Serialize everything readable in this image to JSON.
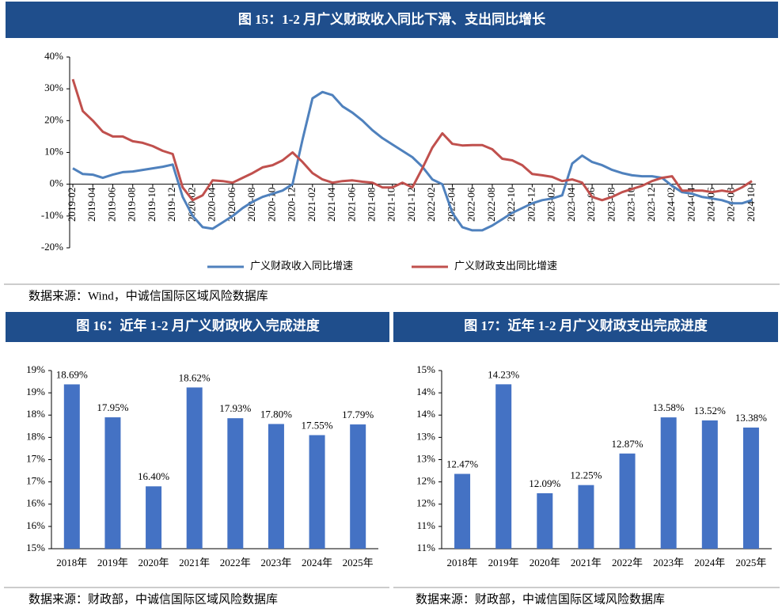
{
  "chart_data": [
    {
      "type": "line",
      "title": "图 15：1-2 月广义财政收入同比下滑、支出同比增长",
      "categories": [
        "2019-02",
        null,
        "2019-04",
        null,
        "2019-06",
        null,
        "2019-08",
        null,
        "2019-10",
        null,
        "2019-12",
        null,
        "2020-02",
        null,
        "2020-04",
        null,
        "2020-06",
        null,
        "2020-08",
        null,
        "2020-10",
        null,
        "2020-12",
        null,
        "2021-02",
        null,
        "2021-04",
        null,
        "2021-06",
        null,
        "2021-08",
        null,
        "2021-10",
        null,
        "2021-12",
        null,
        "2022-02",
        null,
        "2022-04",
        null,
        "2022-06",
        null,
        "2022-08",
        null,
        "2022-10",
        null,
        "2022-12",
        null,
        "2023-02",
        null,
        "2023-04",
        null,
        "2023-06",
        null,
        "2023-08",
        null,
        "2023-10",
        null,
        "2023-12",
        null,
        "2024-02",
        null,
        "2024-04",
        null,
        "2024-06",
        null,
        "2024-08",
        null,
        "2024-10"
      ],
      "series": [
        {
          "name": "广义财政收入同比增速",
          "color": "#4f81bd",
          "values": [
            5,
            3.2,
            3,
            2,
            3,
            3.8,
            4,
            4.5,
            5,
            5.5,
            6.2,
            -4,
            -10,
            -13.5,
            -14,
            -12,
            -10,
            -7.5,
            -5.5,
            -4,
            -3,
            -2,
            0,
            14,
            27,
            29,
            28,
            24.5,
            22.5,
            20,
            17,
            14.5,
            12.5,
            10.5,
            8.5,
            5.5,
            1.5,
            0,
            -9,
            -13.5,
            -14.5,
            -14.5,
            -13,
            -11,
            -9,
            -7.5,
            -6,
            -5,
            -4.5,
            -3.5,
            6.5,
            9,
            7,
            6,
            4.5,
            3.5,
            2.8,
            2.5,
            2.5,
            2,
            -0.5,
            -2.5,
            -3,
            -4,
            -4.5,
            -5,
            -6,
            -6,
            -5
          ]
        },
        {
          "name": "广义财政支出同比增速",
          "color": "#c0504d",
          "values": [
            33,
            23,
            20,
            16.5,
            15,
            15,
            13.5,
            13,
            12,
            10.5,
            9.5,
            -1,
            -5,
            -3.5,
            1.2,
            1,
            0.5,
            2,
            3.5,
            5.3,
            6,
            7.5,
            10,
            7,
            3.5,
            1.5,
            0.5,
            1,
            1.2,
            0.8,
            0.5,
            -1,
            -1,
            0.5,
            -1,
            5,
            11.5,
            16,
            12.7,
            12.2,
            12.3,
            12.3,
            11,
            8,
            7.5,
            6,
            3.2,
            2.8,
            2.3,
            1,
            1.5,
            0.5,
            -4,
            -5,
            -4,
            -2.5,
            -1.5,
            -0.5,
            1,
            2,
            2.5,
            -2,
            -2,
            -2,
            -2.5,
            -2,
            -2.5,
            -1,
            1
          ]
        }
      ],
      "ylim": [
        -20,
        40
      ],
      "yticks": [
        {
          "value": -20,
          "label": "-20%"
        },
        {
          "value": -10,
          "label": "-10%"
        },
        {
          "value": 0,
          "label": "0%"
        },
        {
          "value": 10,
          "label": "10%"
        },
        {
          "value": 20,
          "label": "20%"
        },
        {
          "value": 30,
          "label": "30%"
        },
        {
          "value": 40,
          "label": "40%"
        }
      ],
      "legend": "bottom"
    },
    {
      "type": "bar",
      "title": "图 16：近年 1-2 月广义财政收入完成进度",
      "color": "#4472c4",
      "categories": [
        "2018年",
        "2019年",
        "2020年",
        "2021年",
        "2022年",
        "2023年",
        "2024年",
        "2025年"
      ],
      "values": [
        18.69,
        17.95,
        16.4,
        18.62,
        17.93,
        17.8,
        17.55,
        17.79
      ],
      "value_labels": [
        "18.69%",
        "17.95%",
        "16.40%",
        "18.62%",
        "17.93%",
        "17.80%",
        "17.55%",
        "17.79%"
      ],
      "ylim": [
        15,
        19
      ],
      "yticks": [
        {
          "value": 15,
          "label": "15%"
        },
        {
          "value": 15.5,
          "label": "16%"
        },
        {
          "value": 16,
          "label": "16%"
        },
        {
          "value": 16.5,
          "label": "17%"
        },
        {
          "value": 17,
          "label": "17%"
        },
        {
          "value": 17.5,
          "label": "18%"
        },
        {
          "value": 18,
          "label": "18%"
        },
        {
          "value": 18.5,
          "label": "19%"
        },
        {
          "value": 19,
          "label": "19%"
        }
      ]
    },
    {
      "type": "bar",
      "title": "图 17：近年 1-2 月广义财政支出完成进度",
      "color": "#4472c4",
      "categories": [
        "2018年",
        "2019年",
        "2020年",
        "2021年",
        "2022年",
        "2023年",
        "2024年",
        "2025年"
      ],
      "values": [
        12.47,
        14.23,
        12.09,
        12.25,
        12.87,
        13.58,
        13.52,
        13.38
      ],
      "value_labels": [
        "12.47%",
        "14.23%",
        "12.09%",
        "12.25%",
        "12.87%",
        "13.58%",
        "13.52%",
        "13.38%"
      ],
      "ylim": [
        11,
        14.5
      ],
      "yticks": [
        {
          "value": 11,
          "label": "11%"
        },
        {
          "value": 11.4375,
          "label": "11%"
        },
        {
          "value": 11.875,
          "label": "12%"
        },
        {
          "value": 12.3125,
          "label": "12%"
        },
        {
          "value": 12.75,
          "label": "13%"
        },
        {
          "value": 13.1875,
          "label": "13%"
        },
        {
          "value": 13.625,
          "label": "14%"
        },
        {
          "value": 14.0625,
          "label": "14%"
        },
        {
          "value": 14.5,
          "label": "15%"
        }
      ]
    }
  ],
  "sources": [
    "数据来源：Wind，中诚信国际区域风险数据库",
    "数据来源：财政部，中诚信国际区域风险数据库",
    "数据来源：财政部，中诚信国际区域风险数据库"
  ]
}
